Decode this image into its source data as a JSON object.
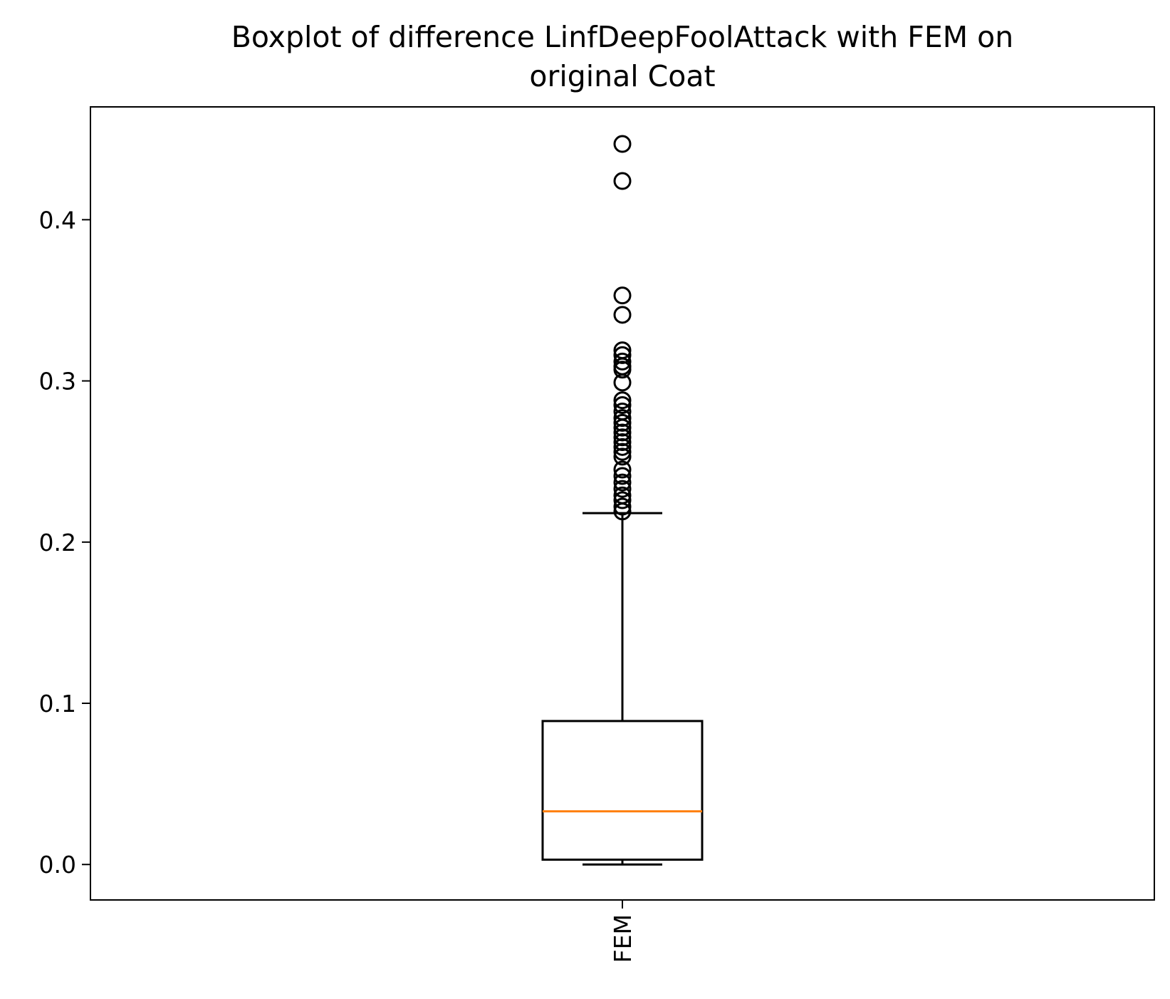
{
  "chart_data": {
    "type": "boxplot",
    "title_lines": [
      "Boxplot of difference LinfDeepFoolAttack with FEM on",
      "original Coat"
    ],
    "xlabel": "",
    "ylabel": "",
    "categories": [
      "FEM"
    ],
    "ylim": [
      -0.022,
      0.47
    ],
    "y_ticks": [
      0.0,
      0.1,
      0.2,
      0.3,
      0.4
    ],
    "y_tick_labels": [
      "0.0",
      "0.1",
      "0.2",
      "0.3",
      "0.4"
    ],
    "grid": false,
    "boxes": [
      {
        "name": "FEM",
        "whisker_low": 0.0,
        "q1": 0.003,
        "median": 0.033,
        "q3": 0.089,
        "whisker_high": 0.218,
        "outliers": [
          0.447,
          0.424,
          0.353,
          0.341,
          0.319,
          0.316,
          0.312,
          0.309,
          0.307,
          0.299,
          0.288,
          0.285,
          0.281,
          0.277,
          0.274,
          0.271,
          0.268,
          0.265,
          0.262,
          0.259,
          0.256,
          0.253,
          0.245,
          0.241,
          0.237,
          0.233,
          0.229,
          0.226,
          0.222,
          0.219
        ]
      }
    ],
    "colors": {
      "box": "#000000",
      "median": "#ff7f0e",
      "outlier": "#000000"
    }
  }
}
